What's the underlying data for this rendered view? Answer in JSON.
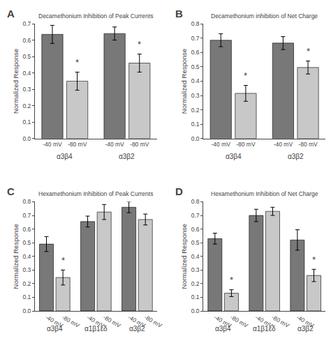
{
  "chart_data": [
    {
      "type": "bar",
      "panel_label": "A",
      "title": "Decamethonium Inhibition of Peak Currents",
      "ylabel": "Normalized Response",
      "categories": [
        "-40 mV",
        "-80 mV",
        "-40 mV",
        "-80 mV"
      ],
      "groups": [
        "α3β4",
        "α3β4",
        "α3β2",
        "α3β2"
      ],
      "values": [
        0.635,
        0.35,
        0.64,
        0.46
      ],
      "errors": [
        0.055,
        0.055,
        0.04,
        0.055
      ],
      "colors": [
        "#787878",
        "#c8c8c8",
        "#787878",
        "#c8c8c8"
      ],
      "annotations": [
        null,
        "*",
        null,
        "*"
      ],
      "ylim": [
        0.0,
        0.7
      ],
      "yticks": [
        {
          "value": 0.0,
          "label": "0.0"
        },
        0.1,
        0.2,
        0.3,
        0.4,
        0.5,
        0.6,
        0.7
      ],
      "grid": false
    },
    {
      "type": "bar",
      "panel_label": "B",
      "title": "Decamethonium inhibition of Net Charge",
      "ylabel": "Normalized Response",
      "categories": [
        "-40 mV",
        "-80 mV",
        "-40 mV",
        "-80 mV"
      ],
      "groups": [
        "α3β4",
        "α3β4",
        "α3β2",
        "α3β2"
      ],
      "values": [
        0.685,
        0.315,
        0.665,
        0.495
      ],
      "errors": [
        0.045,
        0.055,
        0.045,
        0.045
      ],
      "colors": [
        "#787878",
        "#c8c8c8",
        "#787878",
        "#c8c8c8"
      ],
      "annotations": [
        null,
        "*",
        null,
        "*"
      ],
      "ylim": [
        0.0,
        0.8
      ],
      "yticks": [
        {
          "value": 0.0,
          "label": "0.0"
        },
        0.1,
        0.2,
        0.3,
        0.4,
        0.5,
        0.6,
        0.7,
        0.8
      ],
      "grid": false
    },
    {
      "type": "bar",
      "panel_label": "C",
      "title": "Hexamethonium Inhibition of Peak Currents",
      "ylabel": "Normalized Response",
      "categories": [
        "-40 mV",
        "-80 mV",
        "-40 mV",
        "-80 mV",
        "-40 mV",
        "-80 mV"
      ],
      "groups": [
        "α3β4",
        "α3β4",
        "α1β1εδ",
        "α1β1εδ",
        "α3β2",
        "α3β2"
      ],
      "values": [
        0.49,
        0.245,
        0.655,
        0.725,
        0.76,
        0.67
      ],
      "errors": [
        0.055,
        0.055,
        0.04,
        0.055,
        0.04,
        0.04
      ],
      "colors": [
        "#787878",
        "#c8c8c8",
        "#787878",
        "#c8c8c8",
        "#787878",
        "#c8c8c8"
      ],
      "annotations": [
        null,
        "*",
        null,
        null,
        null,
        null
      ],
      "ylim": [
        0.0,
        0.8
      ],
      "yticks": [
        {
          "value": 0.0,
          "label": "0.0"
        },
        0.1,
        0.2,
        0.3,
        0.4,
        0.5,
        0.6,
        0.7,
        0.8
      ],
      "grid": false
    },
    {
      "type": "bar",
      "panel_label": "D",
      "title": "Hexamethonium Inhibition of Net Charge",
      "ylabel": "Normalized Response",
      "categories": [
        "-40 mV",
        "-80 mV",
        "-40 mV",
        "-80 mV",
        "-40 mV",
        "-80 mV"
      ],
      "groups": [
        "α3β4",
        "α3β4",
        "α1β1εδ",
        "α1β1εδ",
        "α3β2",
        "α3β2"
      ],
      "values": [
        0.53,
        0.13,
        0.7,
        0.73,
        0.52,
        0.26
      ],
      "errors": [
        0.04,
        0.025,
        0.045,
        0.03,
        0.075,
        0.045
      ],
      "colors": [
        "#787878",
        "#c8c8c8",
        "#787878",
        "#c8c8c8",
        "#787878",
        "#c8c8c8"
      ],
      "annotations": [
        null,
        "*",
        null,
        null,
        null,
        "*"
      ],
      "ylim": [
        0.0,
        0.8
      ],
      "yticks": [
        {
          "value": 0.0,
          "label": "0.0"
        },
        0.1,
        0.2,
        0.3,
        0.4,
        0.5,
        0.6,
        0.7,
        0.8
      ],
      "grid": false
    }
  ]
}
